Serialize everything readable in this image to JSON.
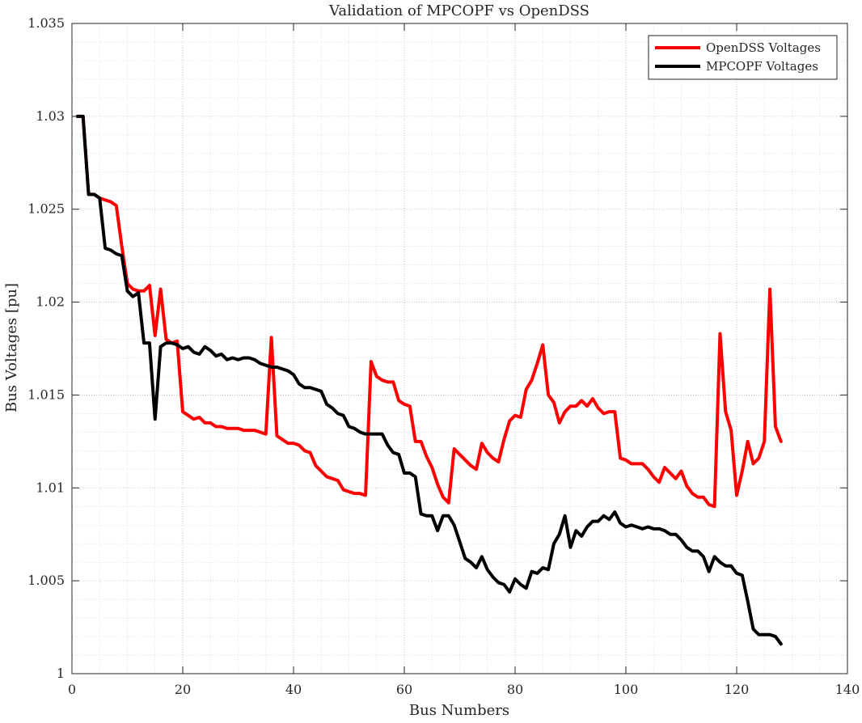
{
  "chart_data": {
    "type": "line",
    "title": "Validation of MPCOPF vs OpenDSS",
    "xlabel": "Bus Numbers",
    "ylabel": "Bus Voltages [pu]",
    "xlim": [
      0,
      140
    ],
    "ylim": [
      1.0,
      1.035
    ],
    "xticks": [
      0,
      20,
      40,
      60,
      80,
      100,
      120,
      140
    ],
    "xtick_labels": [
      "0",
      "20",
      "40",
      "60",
      "80",
      "100",
      "120",
      "140"
    ],
    "yticks": [
      1.0,
      1.005,
      1.01,
      1.015,
      1.02,
      1.025,
      1.03,
      1.035
    ],
    "ytick_labels": [
      "1",
      "1.005",
      "1.01",
      "1.015",
      "1.02",
      "1.025",
      "1.03",
      "1.035"
    ],
    "grid": true,
    "minor_grid": true,
    "legend_position": "top-right",
    "series": [
      {
        "name": "OpenDSS Voltages",
        "color": "#ff0000",
        "x": [
          1,
          2,
          3,
          4,
          5,
          6,
          7,
          8,
          9,
          10,
          11,
          12,
          13,
          14,
          15,
          16,
          17,
          18,
          19,
          20,
          21,
          22,
          23,
          24,
          25,
          26,
          27,
          28,
          29,
          30,
          31,
          32,
          33,
          34,
          35,
          36,
          37,
          38,
          39,
          40,
          41,
          42,
          43,
          44,
          45,
          46,
          47,
          48,
          49,
          50,
          51,
          52,
          53,
          54,
          55,
          56,
          57,
          58,
          59,
          60,
          61,
          62,
          63,
          64,
          65,
          66,
          67,
          68,
          69,
          70,
          71,
          72,
          73,
          74,
          75,
          76,
          77,
          78,
          79,
          80,
          81,
          82,
          83,
          84,
          85,
          86,
          87,
          88,
          89,
          90,
          91,
          92,
          93,
          94,
          95,
          96,
          97,
          98,
          99,
          100,
          101,
          102,
          103,
          104,
          105,
          106,
          107,
          108,
          109,
          110,
          111,
          112,
          113,
          114,
          115,
          116,
          117,
          118,
          119,
          120,
          121,
          122,
          123,
          124,
          125,
          126,
          127,
          128
        ],
        "y": [
          1.03,
          1.03,
          1.0258,
          1.0258,
          1.0256,
          1.0255,
          1.0254,
          1.0252,
          1.023,
          1.021,
          1.0207,
          1.0206,
          1.0206,
          1.0209,
          1.0182,
          1.0207,
          1.018,
          1.0178,
          1.0179,
          1.0141,
          1.0139,
          1.0137,
          1.0138,
          1.0135,
          1.0135,
          1.0133,
          1.0133,
          1.0132,
          1.0132,
          1.0132,
          1.0131,
          1.0131,
          1.0131,
          1.013,
          1.0129,
          1.0181,
          1.0128,
          1.0126,
          1.0124,
          1.0124,
          1.0123,
          1.012,
          1.0119,
          1.0112,
          1.0109,
          1.0106,
          1.0105,
          1.0104,
          1.0099,
          1.0098,
          1.0097,
          1.0097,
          1.0096,
          1.0168,
          1.016,
          1.0158,
          1.0157,
          1.0157,
          1.0147,
          1.0145,
          1.0144,
          1.0125,
          1.0125,
          1.0117,
          1.0111,
          1.0102,
          1.0095,
          1.0092,
          1.0121,
          1.0118,
          1.0115,
          1.0112,
          1.011,
          1.0124,
          1.0119,
          1.0116,
          1.0114,
          1.0126,
          1.0136,
          1.0139,
          1.0138,
          1.0153,
          1.0158,
          1.0167,
          1.0177,
          1.015,
          1.0146,
          1.0135,
          1.0141,
          1.0144,
          1.0144,
          1.0147,
          1.0144,
          1.0148,
          1.0143,
          1.014,
          1.0141,
          1.0141,
          1.0116,
          1.0115,
          1.0113,
          1.0113,
          1.0113,
          1.011,
          1.0106,
          1.0103,
          1.0111,
          1.0108,
          1.0105,
          1.0109,
          1.0101,
          1.0097,
          1.0095,
          1.0095,
          1.0091,
          1.009,
          1.0183,
          1.0141,
          1.0131,
          1.0096,
          1.0109,
          1.0125,
          1.0113,
          1.0116,
          1.0125,
          1.0207,
          1.0133,
          1.0125
        ]
      },
      {
        "name": "MPCOPF Voltages",
        "color": "#000000",
        "x": [
          1,
          2,
          3,
          4,
          5,
          6,
          7,
          8,
          9,
          10,
          11,
          12,
          13,
          14,
          15,
          16,
          17,
          18,
          19,
          20,
          21,
          22,
          23,
          24,
          25,
          26,
          27,
          28,
          29,
          30,
          31,
          32,
          33,
          34,
          35,
          36,
          37,
          38,
          39,
          40,
          41,
          42,
          43,
          44,
          45,
          46,
          47,
          48,
          49,
          50,
          51,
          52,
          53,
          54,
          55,
          56,
          57,
          58,
          59,
          60,
          61,
          62,
          63,
          64,
          65,
          66,
          67,
          68,
          69,
          70,
          71,
          72,
          73,
          74,
          75,
          76,
          77,
          78,
          79,
          80,
          81,
          82,
          83,
          84,
          85,
          86,
          87,
          88,
          89,
          90,
          91,
          92,
          93,
          94,
          95,
          96,
          97,
          98,
          99,
          100,
          101,
          102,
          103,
          104,
          105,
          106,
          107,
          108,
          109,
          110,
          111,
          112,
          113,
          114,
          115,
          116,
          117,
          118,
          119,
          120,
          121,
          122,
          123,
          124,
          125,
          126,
          127,
          128
        ],
        "y": [
          1.03,
          1.03,
          1.0258,
          1.0258,
          1.0256,
          1.0229,
          1.0228,
          1.0226,
          1.0225,
          1.0206,
          1.0203,
          1.0205,
          1.0178,
          1.0178,
          1.0137,
          1.0176,
          1.0178,
          1.0178,
          1.0177,
          1.0175,
          1.0176,
          1.0173,
          1.0172,
          1.0176,
          1.0174,
          1.0171,
          1.0172,
          1.0169,
          1.017,
          1.0169,
          1.017,
          1.017,
          1.0169,
          1.0167,
          1.0166,
          1.0165,
          1.0165,
          1.0164,
          1.0163,
          1.0161,
          1.0156,
          1.0154,
          1.0154,
          1.0153,
          1.0152,
          1.0145,
          1.0143,
          1.014,
          1.0139,
          1.0133,
          1.0132,
          1.013,
          1.0129,
          1.0129,
          1.0129,
          1.0129,
          1.0123,
          1.0119,
          1.0118,
          1.0108,
          1.0108,
          1.0106,
          1.0086,
          1.0085,
          1.0085,
          1.0077,
          1.0085,
          1.0085,
          1.008,
          1.0071,
          1.0062,
          1.006,
          1.0057,
          1.0063,
          1.0056,
          1.0052,
          1.0049,
          1.0048,
          1.0044,
          1.0051,
          1.0048,
          1.0046,
          1.0055,
          1.0054,
          1.0057,
          1.0056,
          1.007,
          1.0075,
          1.0085,
          1.0068,
          1.0077,
          1.0074,
          1.0079,
          1.0082,
          1.0082,
          1.0085,
          1.0083,
          1.0087,
          1.0081,
          1.0079,
          1.008,
          1.0079,
          1.0078,
          1.0079,
          1.0078,
          1.0078,
          1.0077,
          1.0075,
          1.0075,
          1.0072,
          1.0068,
          1.0066,
          1.0066,
          1.0063,
          1.0055,
          1.0063,
          1.006,
          1.0058,
          1.0058,
          1.0054,
          1.0053,
          1.0039,
          1.0024,
          1.0021,
          1.0021,
          1.0021,
          1.002,
          1.0016
        ]
      }
    ]
  }
}
